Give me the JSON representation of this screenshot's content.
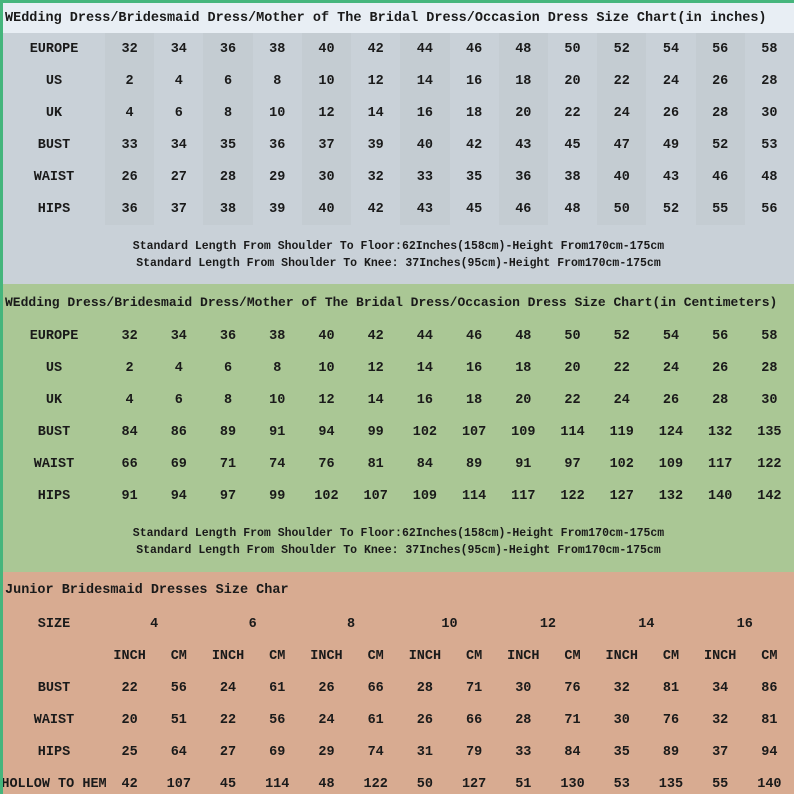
{
  "colors": {
    "frame_border": "#45b57c",
    "inches_title_bg": "#e8eef4",
    "inches_bg": "#c9d1d8",
    "cm_bg": "#aac795",
    "junior_bg": "#d8ab91",
    "text": "#1a1a1a"
  },
  "chart_data": [
    {
      "type": "table",
      "id": "inches",
      "title": "WEdding Dress/Bridesmaid Dress/Mother of The Bridal Dress/Occasion Dress Size Chart(in inches)",
      "rows": [
        {
          "label": "EUROPE",
          "values": [
            32,
            34,
            36,
            38,
            40,
            42,
            44,
            46,
            48,
            50,
            52,
            54,
            56,
            58
          ]
        },
        {
          "label": "US",
          "values": [
            2,
            4,
            6,
            8,
            10,
            12,
            14,
            16,
            18,
            20,
            22,
            24,
            26,
            28
          ]
        },
        {
          "label": "UK",
          "values": [
            4,
            6,
            8,
            10,
            12,
            14,
            16,
            18,
            20,
            22,
            24,
            26,
            28,
            30
          ]
        },
        {
          "label": "BUST",
          "values": [
            33,
            34,
            35,
            36,
            37,
            39,
            40,
            42,
            43,
            45,
            47,
            49,
            52,
            53
          ]
        },
        {
          "label": "WAIST",
          "values": [
            26,
            27,
            28,
            29,
            30,
            32,
            33,
            35,
            36,
            38,
            40,
            43,
            46,
            48
          ]
        },
        {
          "label": "HIPS",
          "values": [
            36,
            37,
            38,
            39,
            40,
            42,
            43,
            45,
            46,
            48,
            50,
            52,
            55,
            56
          ]
        }
      ],
      "notes": [
        "Standard Length From Shoulder To Floor:62Inches(158cm)-Height From170cm-175cm",
        "Standard Length From Shoulder To Knee: 37Inches(95cm)-Height From170cm-175cm"
      ]
    },
    {
      "type": "table",
      "id": "centimeters",
      "title": "WEdding Dress/Bridesmaid Dress/Mother of The Bridal Dress/Occasion Dress Size Chart(in Centimeters)",
      "rows": [
        {
          "label": "EUROPE",
          "values": [
            32,
            34,
            36,
            38,
            40,
            42,
            44,
            46,
            48,
            50,
            52,
            54,
            56,
            58
          ]
        },
        {
          "label": "US",
          "values": [
            2,
            4,
            6,
            8,
            10,
            12,
            14,
            16,
            18,
            20,
            22,
            24,
            26,
            28
          ]
        },
        {
          "label": "UK",
          "values": [
            4,
            6,
            8,
            10,
            12,
            14,
            16,
            18,
            20,
            22,
            24,
            26,
            28,
            30
          ]
        },
        {
          "label": "BUST",
          "values": [
            84,
            86,
            89,
            91,
            94,
            99,
            102,
            107,
            109,
            114,
            119,
            124,
            132,
            135
          ]
        },
        {
          "label": "WAIST",
          "values": [
            66,
            69,
            71,
            74,
            76,
            81,
            84,
            89,
            91,
            97,
            102,
            109,
            117,
            122
          ]
        },
        {
          "label": "HIPS",
          "values": [
            91,
            94,
            97,
            99,
            102,
            107,
            109,
            114,
            117,
            122,
            127,
            132,
            140,
            142
          ]
        }
      ],
      "notes": [
        "Standard Length From Shoulder To Floor:62Inches(158cm)-Height From170cm-175cm",
        "Standard Length From Shoulder To Knee: 37Inches(95cm)-Height From170cm-175cm"
      ]
    },
    {
      "type": "table",
      "id": "junior",
      "title": "Junior Bridesmaid Dresses Size Char",
      "size_label": "SIZE",
      "sizes": [
        "4",
        "6",
        "8",
        "10",
        "12",
        "14",
        "16"
      ],
      "unit_headers": [
        "INCH",
        "CM"
      ],
      "rows": [
        {
          "label": "BUST",
          "values": [
            22,
            56,
            24,
            61,
            26,
            66,
            28,
            71,
            30,
            76,
            32,
            81,
            34,
            86
          ]
        },
        {
          "label": "WAIST",
          "values": [
            20,
            51,
            22,
            56,
            24,
            61,
            26,
            66,
            28,
            71,
            30,
            76,
            32,
            81
          ]
        },
        {
          "label": "HIPS",
          "values": [
            25,
            64,
            27,
            69,
            29,
            74,
            31,
            79,
            33,
            84,
            35,
            89,
            37,
            94
          ]
        },
        {
          "label": "HOLLOW TO HEM",
          "values": [
            42,
            107,
            45,
            114,
            48,
            122,
            50,
            127,
            51,
            130,
            53,
            135,
            55,
            140
          ]
        }
      ]
    }
  ]
}
